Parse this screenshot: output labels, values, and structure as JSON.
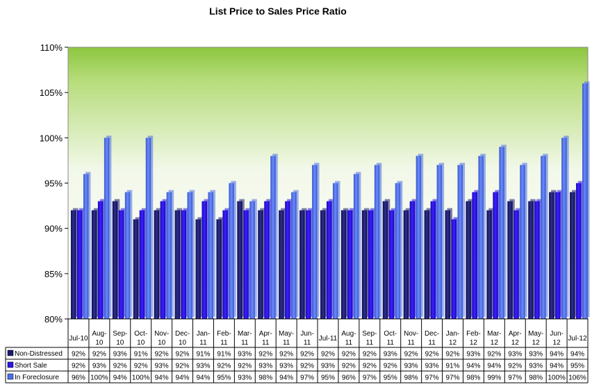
{
  "chart_data": {
    "type": "bar",
    "title": "List Price to Sales Price Ratio",
    "ylim": [
      80,
      110
    ],
    "yticks": [
      "80%",
      "85%",
      "90%",
      "95%",
      "100%",
      "105%",
      "110%"
    ],
    "categories": [
      [
        "Jul-10"
      ],
      [
        "Aug-",
        "10"
      ],
      [
        "Sep-",
        "10"
      ],
      [
        "Oct-",
        "10"
      ],
      [
        "Nov-",
        "10"
      ],
      [
        "Dec-",
        "10"
      ],
      [
        "Jan-",
        "11"
      ],
      [
        "Feb-",
        "11"
      ],
      [
        "Mar-",
        "11"
      ],
      [
        "Apr-",
        "11"
      ],
      [
        "May-",
        "11"
      ],
      [
        "Jun-",
        "11"
      ],
      [
        "Jul-11"
      ],
      [
        "Aug-",
        "11"
      ],
      [
        "Sep-",
        "11"
      ],
      [
        "Oct-",
        "11"
      ],
      [
        "Nov-",
        "11"
      ],
      [
        "Dec-",
        "11"
      ],
      [
        "Jan-",
        "12"
      ],
      [
        "Feb-",
        "12"
      ],
      [
        "Mar-",
        "12"
      ],
      [
        "Apr-",
        "12"
      ],
      [
        "May-",
        "12"
      ],
      [
        "Jun-",
        "12"
      ],
      [
        "Jul-12"
      ]
    ],
    "series": [
      {
        "name": "Non-Distressed",
        "color": "#1a1a6e",
        "values": [
          92,
          92,
          93,
          91,
          92,
          92,
          91,
          91,
          93,
          92,
          92,
          92,
          92,
          92,
          92,
          93,
          92,
          92,
          92,
          93,
          92,
          93,
          93,
          94,
          94
        ]
      },
      {
        "name": "Short Sale",
        "color": "#2a14e8",
        "values": [
          92,
          93,
          92,
          92,
          93,
          92,
          93,
          92,
          92,
          93,
          93,
          92,
          93,
          92,
          92,
          92,
          93,
          93,
          91,
          94,
          94,
          92,
          93,
          94,
          95
        ]
      },
      {
        "name": "In Foreclosure",
        "color": "#4c6fe6",
        "values": [
          96,
          100,
          94,
          100,
          94,
          94,
          94,
          95,
          93,
          98,
          94,
          97,
          95,
          96,
          97,
          95,
          98,
          97,
          97,
          98,
          99,
          97,
          98,
          100,
          106
        ]
      }
    ],
    "grid": false,
    "legend": "data-table"
  }
}
